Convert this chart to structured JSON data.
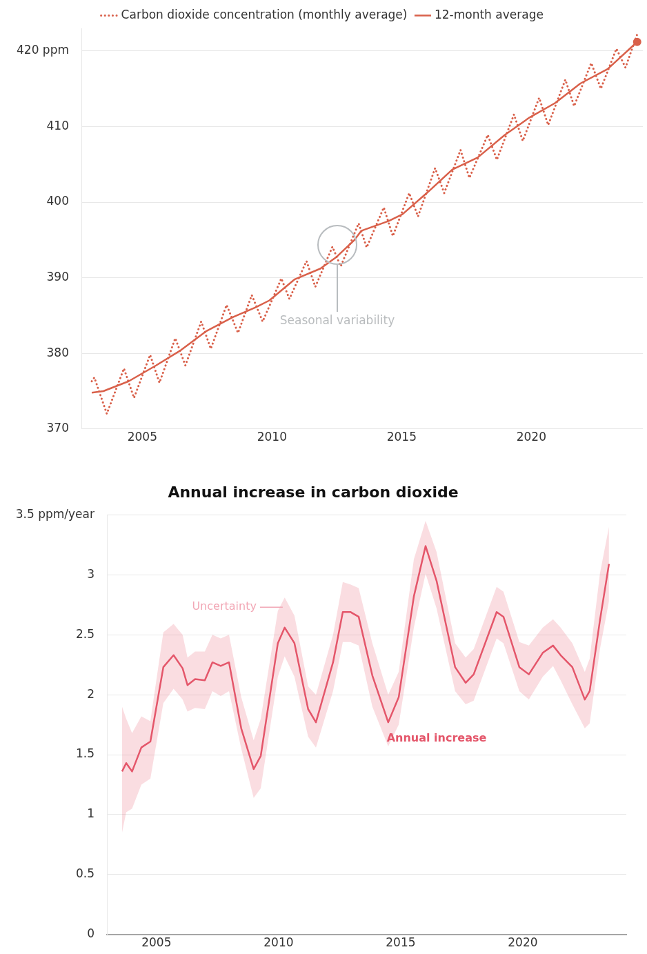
{
  "chart_data": [
    {
      "type": "line",
      "xlim": [
        2002.65,
        2024.3
      ],
      "xticks": [
        2005,
        2010,
        2015,
        2020
      ],
      "ylim": [
        370,
        423
      ],
      "yticks": [
        370,
        380,
        390,
        400,
        410,
        {
          "value": 420,
          "label": "420 ppm"
        }
      ],
      "grid": "y",
      "legend": "top",
      "annotations": [
        "Seasonal variability"
      ],
      "series": [
        {
          "name": "Carbon dioxide concentration (monthly average)",
          "color": "#d9604a",
          "line_style": "dotted",
          "x": [
            2003.05,
            2003.15,
            2003.63,
            2004.29,
            2004.68,
            2005.3,
            2005.66,
            2006.27,
            2006.66,
            2007.27,
            2007.64,
            2008.25,
            2008.69,
            2009.22,
            2009.64,
            2010.36,
            2010.67,
            2011.33,
            2011.67,
            2012.33,
            2012.65,
            2013.34,
            2013.65,
            2014.31,
            2014.66,
            2015.29,
            2015.63,
            2016.29,
            2016.64,
            2017.27,
            2017.61,
            2018.32,
            2018.67,
            2019.33,
            2019.67,
            2020.3,
            2020.65,
            2021.31,
            2021.65,
            2022.31,
            2022.68,
            2023.28,
            2023.63,
            2024.08
          ],
          "values": [
            376.3,
            376.8,
            372.0,
            378.0,
            374.1,
            379.8,
            376.1,
            382.0,
            378.4,
            384.2,
            380.6,
            386.4,
            382.7,
            387.7,
            384.2,
            389.9,
            387.2,
            392.2,
            388.8,
            394.1,
            391.5,
            397.2,
            394.0,
            399.3,
            395.5,
            401.2,
            398.1,
            404.5,
            401.2,
            406.9,
            403.2,
            408.9,
            405.6,
            411.6,
            408.1,
            413.8,
            410.2,
            416.2,
            412.7,
            418.4,
            415.0,
            420.3,
            417.8,
            422.2
          ]
        },
        {
          "type": "scatter",
          "color": "#d9604a",
          "marker": "circle",
          "x": [
            2024.08
          ],
          "values": [
            421.2
          ]
        },
        {
          "name": "12-month average",
          "color": "#d9604a",
          "line_style": "solid",
          "x": [
            2003.05,
            2003.5,
            2004.47,
            2005.53,
            2006.48,
            2007.45,
            2008.5,
            2009.38,
            2009.9,
            2010.88,
            2011.86,
            2012.47,
            2013.18,
            2013.44,
            2014.5,
            2015.03,
            2016.0,
            2016.95,
            2017.93,
            2018.98,
            2019.93,
            2020.91,
            2021.89,
            2022.94,
            2024.08
          ],
          "values": [
            374.8,
            375.0,
            376.3,
            378.4,
            380.4,
            382.9,
            384.8,
            386.1,
            387.0,
            389.8,
            391.2,
            392.7,
            395.0,
            396.2,
            397.5,
            398.4,
            401.3,
            404.3,
            405.9,
            408.9,
            411.2,
            413.1,
            415.7,
            417.6,
            421.2
          ]
        }
      ]
    },
    {
      "type": "line",
      "title": "Annual increase in carbon dioxide",
      "xlim": [
        2002.97,
        2024.24
      ],
      "xticks": [
        2005,
        2010,
        2015,
        2020
      ],
      "ylim": [
        0,
        3.5
      ],
      "yticks": [
        0,
        0.5,
        1,
        1.5,
        2,
        2.5,
        3,
        {
          "value": 3.5,
          "label": "3.5 ppm/year"
        }
      ],
      "grid": "y",
      "annotations": [
        {
          "text": "Uncertainty",
          "x": 2010.17,
          "y": 2.73
        },
        "Annual increase"
      ],
      "series": [
        {
          "color": "#e4566a",
          "line_style": "solid",
          "x": [
            2003.59,
            2003.76,
            2004.0,
            2004.38,
            2004.75,
            2005.28,
            2005.7,
            2006.07,
            2006.27,
            2006.58,
            2006.98,
            2007.29,
            2007.63,
            2007.97,
            2008.47,
            2008.98,
            2009.27,
            2009.97,
            2010.25,
            2010.65,
            2011.21,
            2011.53,
            2012.23,
            2012.63,
            2012.94,
            2013.28,
            2013.84,
            2014.49,
            2014.92,
            2015.54,
            2016.02,
            2016.47,
            2017.23,
            2017.66,
            2017.99,
            2018.93,
            2019.21,
            2019.86,
            2020.25,
            2020.82,
            2021.24,
            2021.55,
            2022.03,
            2022.54,
            2022.74,
            2023.16,
            2023.53
          ],
          "values": [
            1.36,
            1.43,
            1.36,
            1.56,
            1.61,
            2.23,
            2.33,
            2.22,
            2.08,
            2.13,
            2.12,
            2.27,
            2.24,
            2.27,
            1.72,
            1.38,
            1.49,
            2.43,
            2.56,
            2.43,
            1.88,
            1.77,
            2.27,
            2.69,
            2.69,
            2.65,
            2.16,
            1.77,
            1.98,
            2.82,
            3.24,
            2.95,
            2.23,
            2.1,
            2.17,
            2.69,
            2.65,
            2.23,
            2.17,
            2.35,
            2.41,
            2.33,
            2.23,
            1.96,
            2.03,
            2.62,
            3.09
          ],
          "upper": [
            1.9,
            1.8,
            1.68,
            1.82,
            1.78,
            2.52,
            2.59,
            2.5,
            2.31,
            2.36,
            2.36,
            2.5,
            2.47,
            2.5,
            1.98,
            1.62,
            1.8,
            2.7,
            2.81,
            2.66,
            2.07,
            2.0,
            2.5,
            2.94,
            2.92,
            2.89,
            2.43,
            2.0,
            2.19,
            3.13,
            3.45,
            3.19,
            2.43,
            2.31,
            2.38,
            2.9,
            2.86,
            2.44,
            2.41,
            2.56,
            2.63,
            2.56,
            2.43,
            2.19,
            2.3,
            3.01,
            3.4
          ],
          "lower": [
            0.85,
            1.02,
            1.05,
            1.25,
            1.3,
            1.93,
            2.05,
            1.96,
            1.86,
            1.89,
            1.88,
            2.03,
            1.99,
            2.03,
            1.55,
            1.14,
            1.22,
            2.15,
            2.32,
            2.15,
            1.65,
            1.56,
            2.03,
            2.44,
            2.44,
            2.41,
            1.9,
            1.57,
            1.75,
            2.56,
            3.01,
            2.72,
            2.03,
            1.92,
            1.95,
            2.47,
            2.43,
            2.03,
            1.96,
            2.15,
            2.24,
            2.12,
            1.92,
            1.72,
            1.76,
            2.38,
            2.78
          ]
        }
      ]
    }
  ]
}
